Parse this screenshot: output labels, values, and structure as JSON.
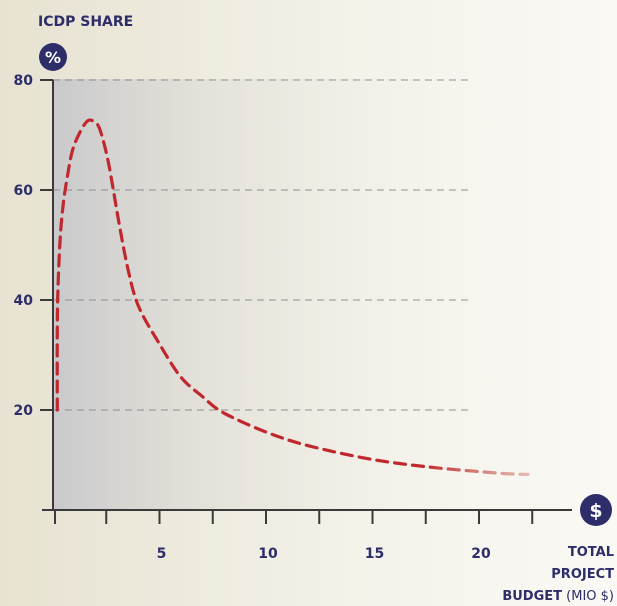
{
  "chart_data": {
    "type": "line",
    "title": "",
    "ylabel": "ICDP SHARE",
    "y_unit": "%",
    "x_unit": "$",
    "xlabel_lines": [
      "TOTAL",
      "PROJECT",
      "BUDGET"
    ],
    "xlabel_suffix": " (MIO $)",
    "ylim": [
      0,
      80
    ],
    "xlim": [
      0,
      25.3
    ],
    "yticks": [
      20,
      40,
      60,
      80
    ],
    "xticks_labeled": [
      5,
      10,
      15,
      20
    ],
    "xticks_minor": [
      0,
      2.5,
      5,
      7.5,
      10,
      12.5,
      15,
      17.5,
      20,
      22.5
    ],
    "grid": true,
    "line_style": "dashed",
    "colors": {
      "line": "#c0282d",
      "axis": "#3a3a3a",
      "label": "#2d2d69",
      "badge": "#2d2d69",
      "grid": "#8a8a8a",
      "shade": "#c9c9cc"
    },
    "series": [
      {
        "x": [
          0.2,
          0.2,
          0.25,
          0.35,
          0.5,
          0.7,
          0.9,
          1.2,
          1.6,
          1.9,
          2.2,
          2.6,
          3.1,
          3.5,
          4.0,
          5.0,
          6.0,
          7.0,
          8.0,
          10.0,
          12.0,
          15.0,
          18.0,
          21.0,
          22.3
        ],
        "y": [
          20,
          35,
          44,
          52,
          58,
          63,
          67,
          70,
          72.5,
          72.5,
          71,
          65,
          54,
          46,
          39,
          32,
          26,
          22.5,
          19.5,
          16,
          13.5,
          11,
          9.5,
          8.5,
          8.3
        ]
      }
    ]
  }
}
